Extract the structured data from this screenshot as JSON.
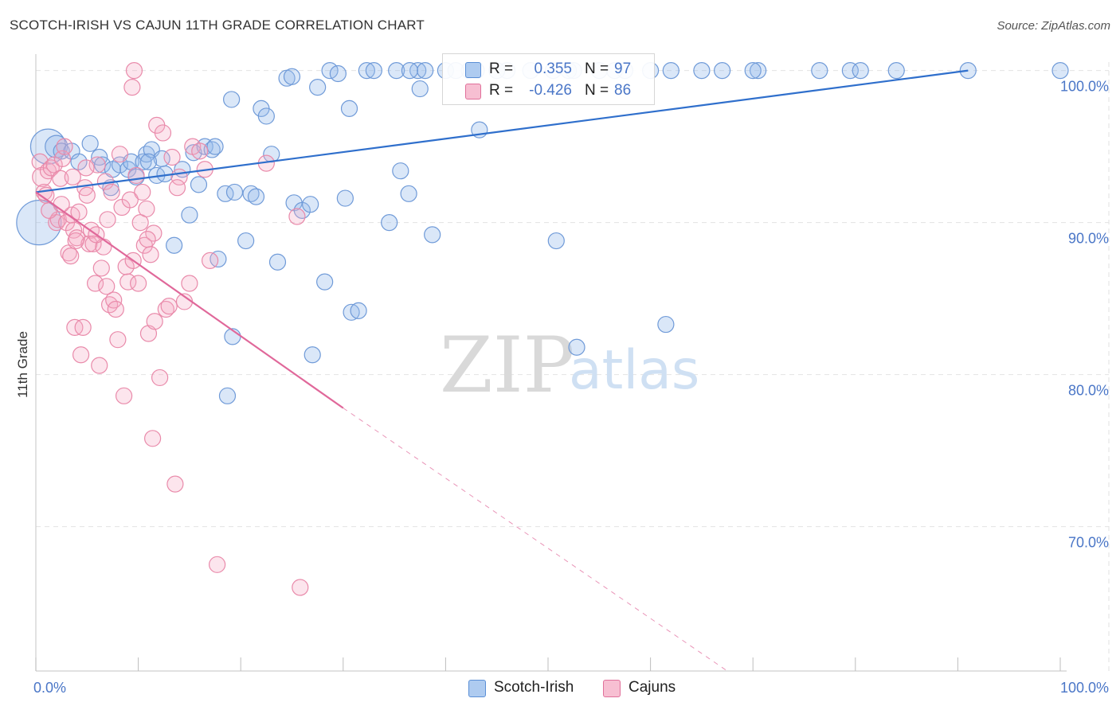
{
  "header": {
    "title": "SCOTCH-IRISH VS CAJUN 11TH GRADE CORRELATION CHART",
    "source": "Source: ZipAtlas.com"
  },
  "watermark": {
    "zip": "ZIP",
    "atlas": "atlas"
  },
  "legend": {
    "r_label": "R =",
    "n_label": "N =",
    "rows": [
      {
        "r": "0.355",
        "n": "97",
        "color": "#5b8fd6",
        "fill": "#aecbf0"
      },
      {
        "r": "-0.426",
        "n": "86",
        "color": "#e0709a",
        "fill": "#f7bfd2"
      }
    ]
  },
  "colors": {
    "blue_stroke": "#6f9ad8",
    "blue_fill": "rgba(150,185,235,0.35)",
    "blue_line": "#2f6fcc",
    "pink_stroke": "#e98aaa",
    "pink_fill": "rgba(245,170,195,0.30)",
    "pink_line": "#e0689a",
    "grid": "#e2e2e2",
    "tick_text": "#4a76c7"
  },
  "chart_data": {
    "type": "scatter",
    "title": "SCOTCH-IRISH VS CAJUN 11TH GRADE CORRELATION CHART",
    "ylabel": "11th Grade",
    "xlabel": "",
    "xlim": [
      0,
      100
    ],
    "ylim": [
      60.5,
      101.5
    ],
    "x_tick_labels": [
      "0.0%",
      "100.0%"
    ],
    "y_ticks": [
      {
        "value": 100,
        "label": "100.0%"
      },
      {
        "value": 90,
        "label": "90.0%"
      },
      {
        "value": 80,
        "label": "80.0%"
      },
      {
        "value": 70,
        "label": "70.0%"
      }
    ],
    "grid": "horizontal dashed",
    "legend_placement": "bottom-center",
    "series": [
      {
        "name": "Scotch-Irish",
        "trend": {
          "x0": 0,
          "y0": 92.0,
          "x1": 91,
          "y1": 100.0
        },
        "points": [
          [
            0.3,
            90.0,
            28
          ],
          [
            1.2,
            95.0,
            22
          ],
          [
            2.0,
            95.0,
            14
          ],
          [
            2.5,
            94.7,
            10
          ],
          [
            3.5,
            94.7,
            10
          ],
          [
            4.2,
            94.0,
            10
          ],
          [
            5.3,
            95.2,
            10
          ],
          [
            6.2,
            94.3,
            10
          ],
          [
            6.5,
            93.8,
            10
          ],
          [
            7.5,
            93.5,
            10
          ],
          [
            7.3,
            92.3,
            10
          ],
          [
            8.2,
            93.8,
            10
          ],
          [
            9.0,
            93.5,
            10
          ],
          [
            9.3,
            94.0,
            10
          ],
          [
            9.8,
            93.0,
            10
          ],
          [
            10.5,
            94.0,
            10
          ],
          [
            10.8,
            94.5,
            10
          ],
          [
            11.3,
            94.8,
            10
          ],
          [
            11.8,
            93.1,
            10
          ],
          [
            12.3,
            94.2,
            10
          ],
          [
            12.6,
            93.2,
            10
          ],
          [
            13.5,
            88.5,
            10
          ],
          [
            14.3,
            93.5,
            10
          ],
          [
            15.0,
            90.5,
            10
          ],
          [
            15.4,
            94.6,
            10
          ],
          [
            15.9,
            92.5,
            10
          ],
          [
            16.5,
            95.0,
            10
          ],
          [
            17.2,
            94.8,
            10
          ],
          [
            17.5,
            95.0,
            10
          ],
          [
            17.8,
            87.6,
            10
          ],
          [
            18.5,
            91.9,
            10
          ],
          [
            19.1,
            98.1,
            10
          ],
          [
            19.4,
            92.0,
            10
          ],
          [
            20.5,
            88.8,
            10
          ],
          [
            21.0,
            91.9,
            10
          ],
          [
            21.5,
            91.7,
            10
          ],
          [
            22.0,
            97.5,
            10
          ],
          [
            22.5,
            97.0,
            10
          ],
          [
            23.0,
            94.5,
            10
          ],
          [
            23.6,
            87.4,
            10
          ],
          [
            24.5,
            99.5,
            10
          ],
          [
            25.2,
            91.3,
            10
          ],
          [
            26.0,
            90.8,
            10
          ],
          [
            26.8,
            91.2,
            10
          ],
          [
            27.5,
            98.9,
            10
          ],
          [
            28.2,
            86.1,
            10
          ],
          [
            28.7,
            100.0,
            10
          ],
          [
            29.5,
            99.8,
            10
          ],
          [
            30.2,
            91.6,
            10
          ],
          [
            30.6,
            97.5,
            10
          ],
          [
            30.8,
            84.1,
            10
          ],
          [
            31.5,
            84.2,
            10
          ],
          [
            32.3,
            100.0,
            10
          ],
          [
            33.0,
            100.0,
            10
          ],
          [
            34.5,
            90.0,
            10
          ],
          [
            35.2,
            100.0,
            10
          ],
          [
            35.6,
            93.4,
            10
          ],
          [
            36.4,
            91.9,
            10
          ],
          [
            37.3,
            100.0,
            10
          ],
          [
            38.0,
            100.0,
            10
          ],
          [
            38.7,
            89.2,
            10
          ],
          [
            40.0,
            100.0,
            10
          ],
          [
            42.3,
            100.0,
            10
          ],
          [
            43.0,
            100.0,
            10
          ],
          [
            43.3,
            96.1,
            10
          ],
          [
            46.0,
            100.0,
            10
          ],
          [
            48.3,
            100.0,
            10
          ],
          [
            50.5,
            100.0,
            10
          ],
          [
            52.0,
            100.0,
            10
          ],
          [
            52.5,
            100.0,
            10
          ],
          [
            56.5,
            100.0,
            10
          ],
          [
            60.0,
            100.0,
            10
          ],
          [
            62.0,
            100.0,
            10
          ],
          [
            65.0,
            100.0,
            10
          ],
          [
            67.0,
            100.0,
            10
          ],
          [
            70.5,
            100.0,
            10
          ],
          [
            76.5,
            100.0,
            10
          ],
          [
            79.5,
            100.0,
            10
          ],
          [
            80.5,
            100.0,
            10
          ],
          [
            84.0,
            100.0,
            10
          ],
          [
            91.0,
            100.0,
            10
          ],
          [
            100.0,
            100.0,
            10
          ],
          [
            50.8,
            88.8,
            10
          ],
          [
            52.8,
            81.8,
            10
          ],
          [
            61.5,
            83.3,
            10
          ],
          [
            19.2,
            82.5,
            10
          ],
          [
            18.7,
            78.6,
            10
          ],
          [
            27.0,
            81.3,
            10
          ],
          [
            36.5,
            100.0,
            10
          ],
          [
            57.5,
            100.0,
            10
          ],
          [
            41.0,
            100.0,
            10
          ],
          [
            45.0,
            100.0,
            10
          ],
          [
            55.0,
            100.0,
            10
          ],
          [
            70.0,
            100.0,
            10
          ],
          [
            37.5,
            98.8,
            10
          ],
          [
            25.0,
            99.6,
            10
          ],
          [
            11.0,
            94.0,
            10
          ]
        ]
      },
      {
        "name": "Cajuns",
        "trend": {
          "x0": 0,
          "y0": 92.0,
          "x1": 30,
          "y1": 77.8
        },
        "trend_dashed": {
          "x0": 30,
          "y0": 77.8,
          "x1": 67.5,
          "y1": 60.5
        },
        "points": [
          [
            0.4,
            94.0,
            10
          ],
          [
            0.6,
            93.0,
            12
          ],
          [
            0.8,
            92.0,
            10
          ],
          [
            1.0,
            91.8,
            10
          ],
          [
            1.2,
            93.4,
            10
          ],
          [
            1.5,
            93.6,
            10
          ],
          [
            1.8,
            93.8,
            10
          ],
          [
            2.0,
            90.0,
            10
          ],
          [
            2.2,
            90.2,
            10
          ],
          [
            2.4,
            92.9,
            10
          ],
          [
            2.6,
            94.2,
            10
          ],
          [
            2.8,
            95.0,
            10
          ],
          [
            3.0,
            90.0,
            10
          ],
          [
            3.2,
            88.0,
            10
          ],
          [
            3.4,
            87.8,
            10
          ],
          [
            3.5,
            90.5,
            10
          ],
          [
            3.6,
            93.0,
            10
          ],
          [
            3.7,
            89.5,
            10
          ],
          [
            3.8,
            83.1,
            10
          ],
          [
            4.0,
            89.0,
            10
          ],
          [
            4.2,
            90.7,
            10
          ],
          [
            4.4,
            81.3,
            10
          ],
          [
            4.6,
            83.1,
            10
          ],
          [
            4.8,
            92.3,
            10
          ],
          [
            5.0,
            91.8,
            10
          ],
          [
            5.2,
            88.6,
            10
          ],
          [
            5.4,
            89.5,
            10
          ],
          [
            5.6,
            88.6,
            10
          ],
          [
            5.8,
            86.0,
            10
          ],
          [
            6.0,
            93.8,
            10
          ],
          [
            6.2,
            80.6,
            10
          ],
          [
            6.4,
            87.0,
            10
          ],
          [
            6.6,
            88.4,
            10
          ],
          [
            6.8,
            92.7,
            10
          ],
          [
            7.0,
            90.2,
            10
          ],
          [
            7.2,
            84.6,
            10
          ],
          [
            7.4,
            92.0,
            10
          ],
          [
            7.6,
            84.9,
            10
          ],
          [
            7.8,
            84.3,
            10
          ],
          [
            8.0,
            82.3,
            10
          ],
          [
            8.2,
            94.5,
            10
          ],
          [
            8.4,
            91.0,
            10
          ],
          [
            8.6,
            78.6,
            10
          ],
          [
            8.8,
            87.1,
            10
          ],
          [
            9.0,
            86.1,
            10
          ],
          [
            9.2,
            91.5,
            10
          ],
          [
            9.4,
            98.9,
            10
          ],
          [
            9.6,
            100.0,
            10
          ],
          [
            9.8,
            93.1,
            10
          ],
          [
            10.0,
            86.0,
            10
          ],
          [
            10.2,
            90.0,
            10
          ],
          [
            10.4,
            92.0,
            10
          ],
          [
            10.6,
            88.5,
            10
          ],
          [
            10.8,
            90.9,
            10
          ],
          [
            11.0,
            82.7,
            10
          ],
          [
            11.2,
            87.9,
            10
          ],
          [
            11.4,
            75.8,
            10
          ],
          [
            11.6,
            83.5,
            10
          ],
          [
            11.8,
            96.4,
            10
          ],
          [
            12.1,
            79.8,
            10
          ],
          [
            12.4,
            95.9,
            10
          ],
          [
            12.7,
            84.3,
            10
          ],
          [
            13.0,
            84.5,
            10
          ],
          [
            13.3,
            94.3,
            10
          ],
          [
            13.6,
            72.8,
            10
          ],
          [
            14.0,
            93.0,
            10
          ],
          [
            14.5,
            84.8,
            10
          ],
          [
            15.0,
            86.0,
            10
          ],
          [
            15.3,
            95.0,
            10
          ],
          [
            16.0,
            94.7,
            10
          ],
          [
            16.5,
            93.5,
            10
          ],
          [
            17.0,
            87.5,
            10
          ],
          [
            17.7,
            67.5,
            10
          ],
          [
            22.5,
            93.9,
            10
          ],
          [
            25.5,
            90.4,
            10
          ],
          [
            25.8,
            66.0,
            10
          ],
          [
            1.3,
            90.8,
            10
          ],
          [
            2.5,
            91.2,
            10
          ],
          [
            3.9,
            88.8,
            10
          ],
          [
            4.9,
            93.6,
            10
          ],
          [
            6.9,
            85.8,
            10
          ],
          [
            9.5,
            87.5,
            10
          ],
          [
            11.5,
            89.3,
            10
          ],
          [
            13.8,
            92.3,
            10
          ],
          [
            5.9,
            89.2,
            10
          ],
          [
            10.9,
            88.9,
            10
          ]
        ]
      }
    ]
  }
}
